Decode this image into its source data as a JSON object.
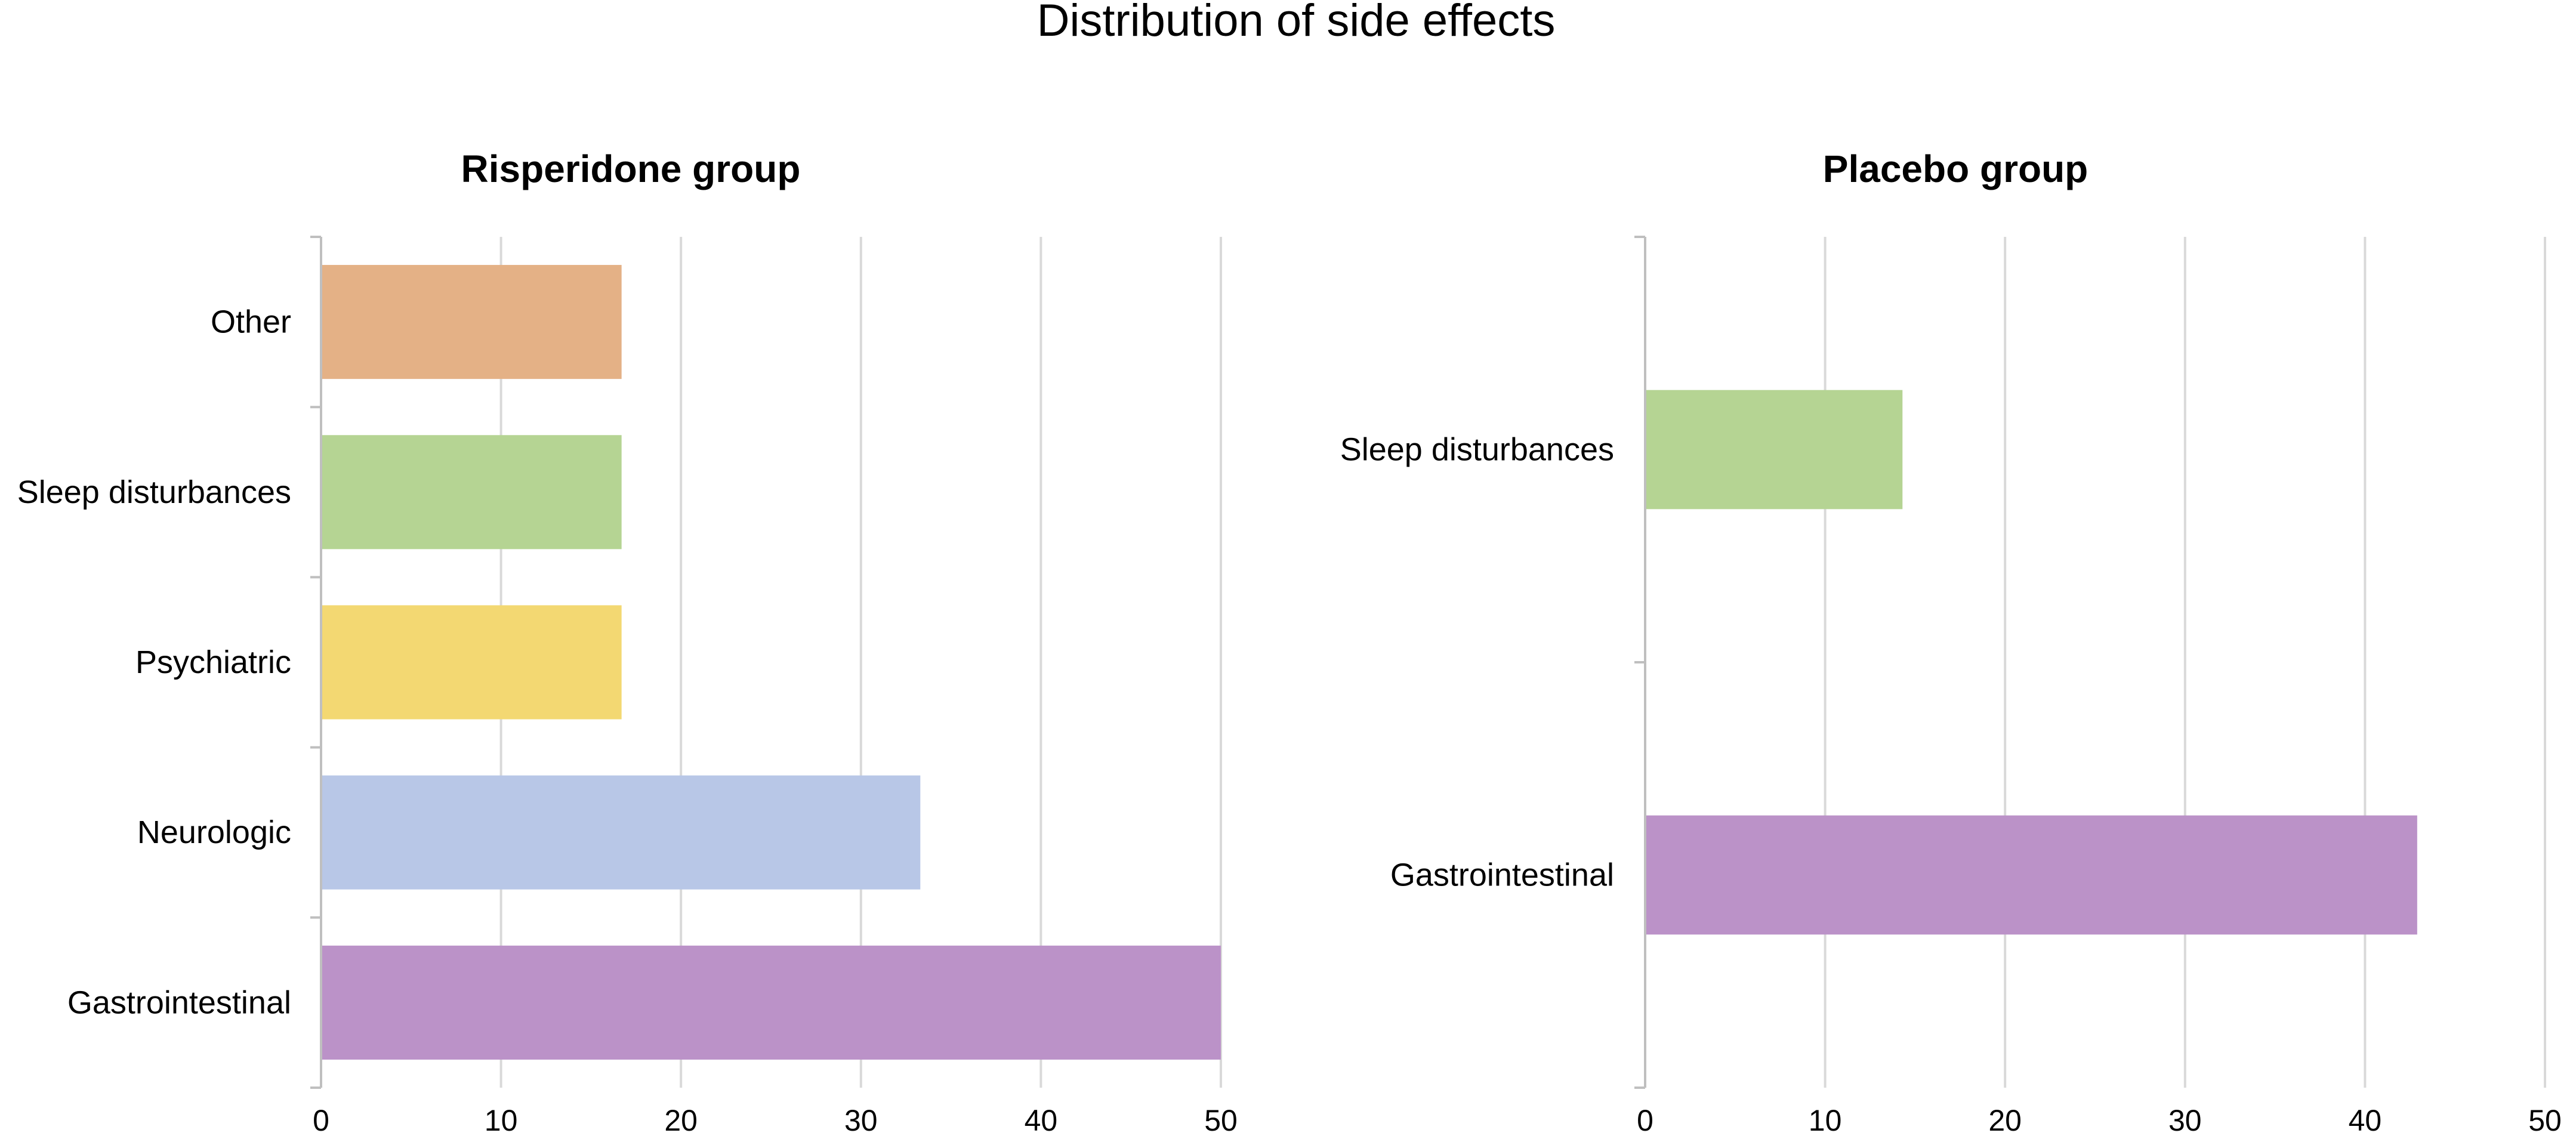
{
  "figure": {
    "title": "Distribution of side effects"
  },
  "colors": {
    "Other": "#E4B186",
    "Sleep disturbances": "#B5D493",
    "Psychiatric": "#F3D872",
    "Neurologic": "#B8C7E7",
    "Gastrointestinal": "#BB92C8",
    "grid": "#D9D9D9",
    "axis": "#BFBFBF"
  },
  "chart_data": [
    {
      "type": "bar",
      "orientation": "horizontal",
      "title": "Risperidone group",
      "categories": [
        "Other",
        "Sleep disturbances",
        "Psychiatric",
        "Neurologic",
        "Gastrointestinal"
      ],
      "values": [
        16.7,
        16.7,
        16.7,
        33.3,
        50
      ],
      "xlim": [
        0,
        50
      ],
      "xticks": [
        0,
        10,
        20,
        30,
        40,
        50
      ],
      "xlabel": "",
      "ylabel": "",
      "grid": true
    },
    {
      "type": "bar",
      "orientation": "horizontal",
      "title": "Placebo group",
      "categories": [
        "Sleep disturbances",
        "Gastrointestinal"
      ],
      "values": [
        14.3,
        42.9
      ],
      "xlim": [
        0,
        50
      ],
      "xticks": [
        0,
        10,
        20,
        30,
        40,
        50
      ],
      "xlabel": "",
      "ylabel": "",
      "grid": true
    }
  ]
}
